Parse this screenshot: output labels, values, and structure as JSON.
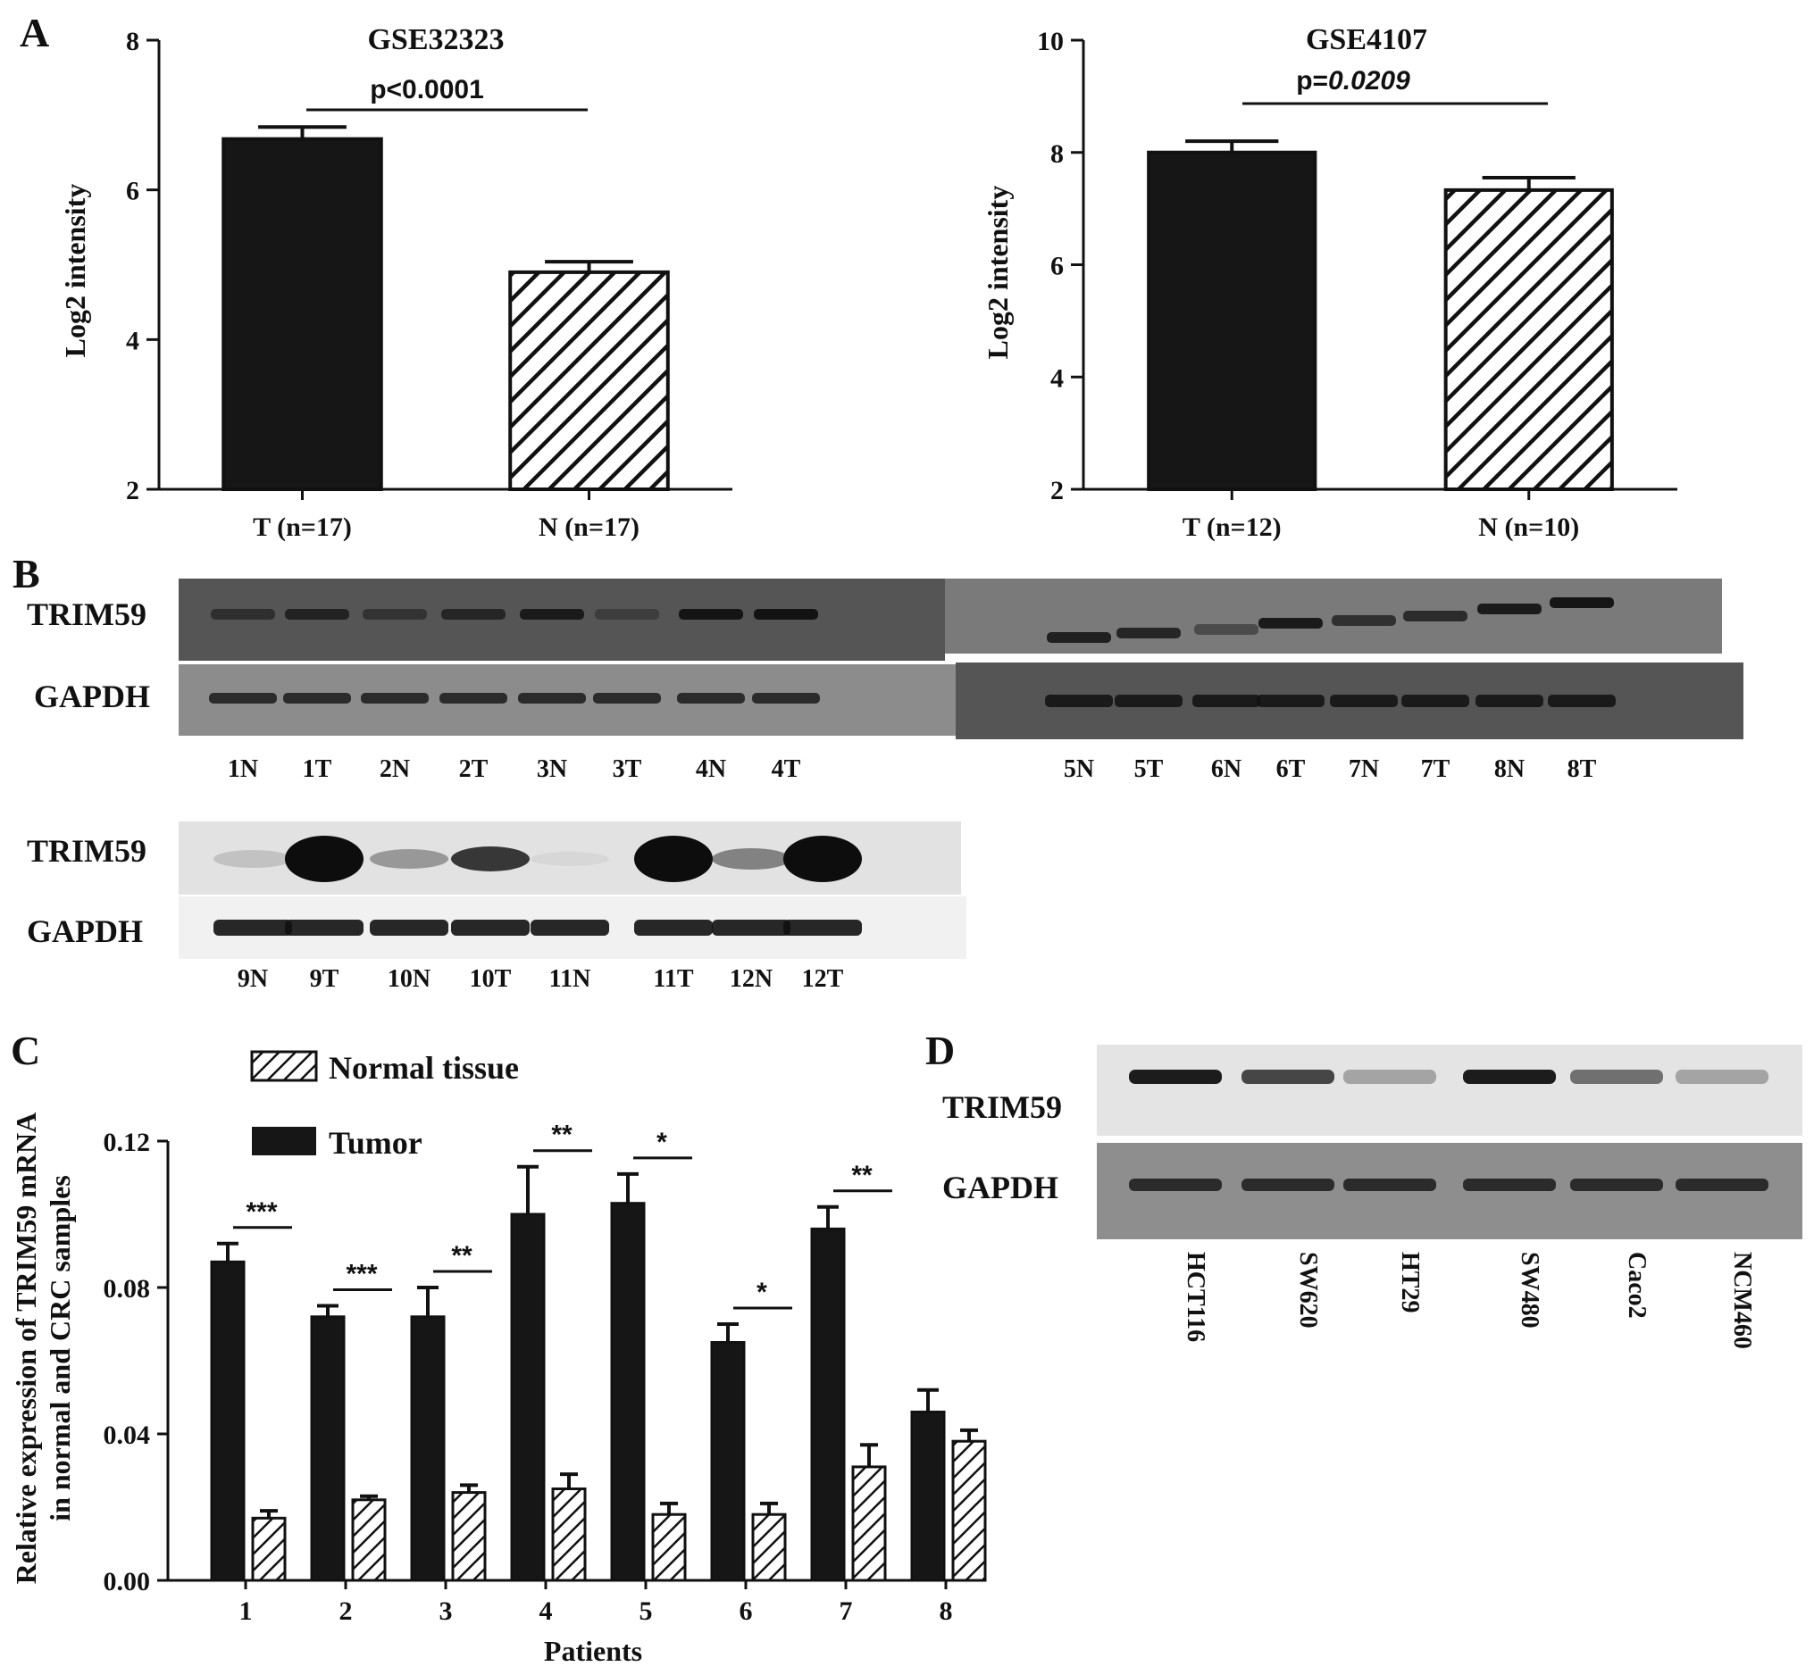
{
  "colors": {
    "bar_tumor": "#161616",
    "hatch": "#111111",
    "axis": "#111111",
    "blot_dark": "#3f3f3f",
    "blot_mid": "#8a8a8a",
    "blot_light": "#c4c4c4"
  },
  "panel_labels": {
    "a": "A",
    "b": "B",
    "c": "C",
    "d": "D"
  },
  "chart_data": [
    {
      "id": "A-left",
      "type": "bar",
      "title": "GSE32323",
      "ylabel": "Log2 intensity",
      "ylim": [
        2,
        8
      ],
      "yticks": [
        2,
        4,
        6,
        8
      ],
      "categories": [
        "T (n=17)",
        "N (n=17)"
      ],
      "values": [
        6.68,
        4.9
      ],
      "errors": [
        0.16,
        0.14
      ],
      "fills": [
        "solid",
        "hatched"
      ],
      "significance": {
        "label_prefix": "p<0.0001",
        "label_value": ""
      }
    },
    {
      "id": "A-right",
      "type": "bar",
      "title": "GSE4107",
      "ylabel": "Log2 intensity",
      "ylim": [
        2,
        10
      ],
      "yticks": [
        2,
        4,
        6,
        8,
        10
      ],
      "categories": [
        "T (n=12)",
        "N (n=10)"
      ],
      "values": [
        8.0,
        7.33
      ],
      "errors": [
        0.2,
        0.22
      ],
      "fills": [
        "solid",
        "hatched"
      ],
      "significance": {
        "label_prefix": "p=",
        "label_value": "0.0209"
      }
    },
    {
      "id": "C",
      "type": "bar",
      "xlabel": "Patients",
      "ylabel_line1": "Relative expression of TRIM59 mRNA",
      "ylabel_line2": "in normal and CRC samples",
      "ylim": [
        0,
        0.12
      ],
      "yticks": [
        "0.00",
        "0.04",
        "0.08",
        "0.12"
      ],
      "categories": [
        "1",
        "2",
        "3",
        "4",
        "5",
        "6",
        "7",
        "8"
      ],
      "series": [
        {
          "name": "Tumor",
          "values": [
            0.087,
            0.072,
            0.072,
            0.1,
            0.103,
            0.065,
            0.096,
            0.046
          ],
          "errors": [
            0.005,
            0.003,
            0.008,
            0.013,
            0.008,
            0.005,
            0.006,
            0.006
          ]
        },
        {
          "name": "Normal tissue",
          "values": [
            0.017,
            0.022,
            0.024,
            0.025,
            0.018,
            0.018,
            0.031,
            0.038
          ],
          "errors": [
            0.002,
            0.001,
            0.002,
            0.004,
            0.003,
            0.003,
            0.006,
            0.003
          ]
        }
      ],
      "significance": [
        "***",
        "***",
        "**",
        "**",
        "*",
        "*",
        "**",
        ""
      ],
      "legend_position": "top-left"
    }
  ],
  "blot_b": {
    "row1": {
      "trim59_label": "TRIM59",
      "gapdh_label": "GAPDH",
      "lanes_left": [
        "1N",
        "1T",
        "2N",
        "2T",
        "3N",
        "3T",
        "4N",
        "4T"
      ],
      "lanes_right": [
        "5N",
        "5T",
        "6N",
        "6T",
        "7N",
        "7T",
        "8N",
        "8T"
      ]
    },
    "row2": {
      "trim59_label": "TRIM59",
      "gapdh_label": "GAPDH",
      "lanes": [
        "9N",
        "9T",
        "10N",
        "10T",
        "11N",
        "11T",
        "12N",
        "12T"
      ]
    }
  },
  "blot_d": {
    "trim59_label": "TRIM59",
    "gapdh_label": "GAPDH",
    "lanes": [
      "HCT116",
      "SW620",
      "HT29",
      "SW480",
      "Caco2",
      "NCM460"
    ]
  }
}
